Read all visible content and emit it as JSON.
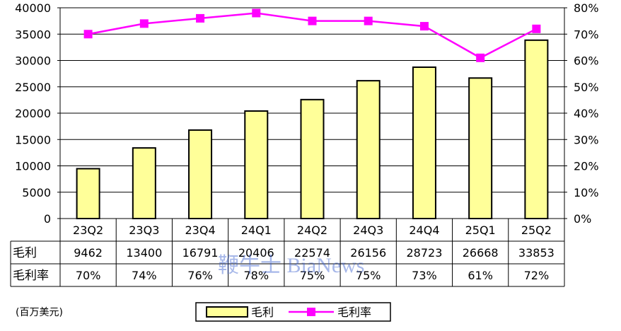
{
  "chart_data": {
    "type": "bar",
    "categories": [
      "23Q2",
      "23Q3",
      "23Q4",
      "24Q1",
      "24Q2",
      "24Q3",
      "24Q4",
      "25Q1",
      "25Q2"
    ],
    "series": [
      {
        "name": "毛利",
        "type": "bar",
        "axis": "left",
        "values": [
          9462,
          13400,
          16791,
          20406,
          22574,
          26156,
          28723,
          26668,
          33853
        ],
        "color": "#FFFF99"
      },
      {
        "name": "毛利率",
        "type": "line",
        "axis": "right",
        "values": [
          70,
          74,
          76,
          78,
          75,
          75,
          73,
          61,
          72
        ],
        "color": "#FF00FF"
      }
    ],
    "ylim_left": [
      0,
      40000
    ],
    "yticks_left": [
      "0",
      "5000",
      "10000",
      "15000",
      "20000",
      "25000",
      "30000",
      "35000",
      "40000"
    ],
    "ylim_right": [
      0,
      80
    ],
    "yticks_right": [
      "0%",
      "10%",
      "20%",
      "30%",
      "40%",
      "50%",
      "60%",
      "70%",
      "80%"
    ],
    "table": {
      "rows": [
        {
          "label": "毛利",
          "cells": [
            "9462",
            "13400",
            "16791",
            "20406",
            "22574",
            "26156",
            "28723",
            "26668",
            "33853"
          ]
        },
        {
          "label": "毛利率",
          "cells": [
            "70%",
            "74%",
            "76%",
            "78%",
            "75%",
            "75%",
            "73%",
            "61%",
            "72%"
          ]
        }
      ]
    },
    "grid": true,
    "legend": {
      "placement": "bottom-center",
      "entries": [
        "毛利",
        "毛利率"
      ]
    },
    "unit_note": "(百万美元)",
    "watermark": "鞭牛士 BiaNews"
  }
}
